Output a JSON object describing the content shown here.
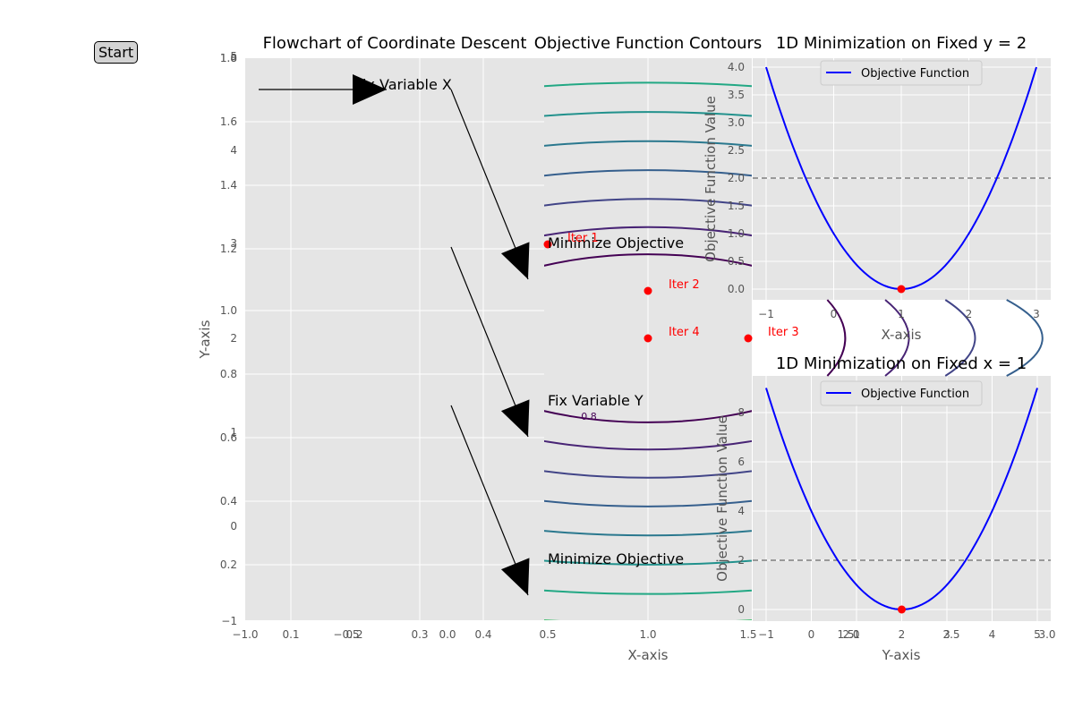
{
  "start_label": "Start",
  "colors": {
    "panel_bg": "#e5e5e5",
    "grid": "#ffffff",
    "curve": "#0000ff",
    "point": "#ff0000",
    "dashed": "#808080"
  },
  "chart_data": [
    {
      "type": "diagram",
      "title": "Flowchart of Coordinate Descent",
      "xlabel": "",
      "ylabel": "Y-axis",
      "xticks_a": [
        "−1.0",
        "−0.5",
        "0.0",
        "0.5"
      ],
      "xticks_b": [
        "0.1",
        "0.2",
        "0.3",
        "0.4"
      ],
      "yticks_a": [
        "1.8",
        "1.6",
        "1.4",
        "1.2",
        "1.0",
        "0.8",
        "0.6",
        "0.4",
        "0.2"
      ],
      "yticks_b": [
        "5",
        "4",
        "3",
        "2",
        "1",
        "0",
        "−1"
      ],
      "yticks_c": [
        "1.0"
      ],
      "nodes": [
        "Fix Variable X",
        "Minimize Objective",
        "Fix Variable Y",
        "Minimize Objective"
      ]
    },
    {
      "type": "contour",
      "title": "Objective Function Contours",
      "xlabel": "X-axis",
      "xticks": [
        "1.0",
        "1.5"
      ],
      "contour_label": "0.8",
      "levels": [
        0.8,
        1.4,
        2.2,
        3.2,
        4.4,
        5.8,
        7.4,
        9.2,
        11.2,
        13.4,
        15.8,
        18.4
      ],
      "points": [
        {
          "label": "Iter 1",
          "x": 0.5,
          "y": 3.0
        },
        {
          "label": "Iter 2",
          "x": 1.0,
          "y": 2.5
        },
        {
          "label": "Iter 4",
          "x": 1.0,
          "y": 2.0
        },
        {
          "label": "Iter 3",
          "x": 1.5,
          "y": 2.0
        }
      ]
    },
    {
      "type": "line",
      "title": "1D Minimization on Fixed y = 2",
      "xlabel": "X-axis",
      "ylabel": "Objective Function Value",
      "legend": "Objective Function",
      "xlim": [
        -1.2,
        3.2
      ],
      "ylim": [
        -0.2,
        4.2
      ],
      "xticks": [
        "−1",
        "0",
        "1",
        "2",
        "3"
      ],
      "yticks": [
        "0.0",
        "0.5",
        "1.0",
        "1.5",
        "2.0",
        "2.5",
        "3.0",
        "3.5",
        "4.0"
      ],
      "series": [
        {
          "x": [
            -1,
            -0.5,
            0,
            0.5,
            1,
            1.5,
            2,
            2.5,
            3
          ],
          "y": [
            4,
            2.25,
            1,
            0.25,
            0,
            0.25,
            1,
            2.25,
            4
          ]
        }
      ],
      "min_point": {
        "x": 1,
        "y": 0
      },
      "hline": 2.0
    },
    {
      "type": "line",
      "title": "1D Minimization on Fixed x = 1",
      "xlabel": "Y-axis",
      "ylabel": "Objective Function Value",
      "legend": "Objective Function",
      "xlim": [
        -1.2,
        5.2
      ],
      "ylim": [
        -0.4,
        9.4
      ],
      "xticks": [
        "−1",
        "0",
        "1",
        "2",
        "3",
        "4",
        "5"
      ],
      "xticks_extra": [
        "1.5",
        "2.0",
        "2.5",
        "3.0"
      ],
      "yticks": [
        "0",
        "2",
        "4",
        "6",
        "8"
      ],
      "series": [
        {
          "x": [
            -1,
            0,
            1,
            2,
            3,
            4,
            5
          ],
          "y": [
            9,
            4,
            1,
            0,
            1,
            4,
            9
          ]
        }
      ],
      "min_point": {
        "x": 2,
        "y": 0
      },
      "hline": 2.0
    }
  ]
}
